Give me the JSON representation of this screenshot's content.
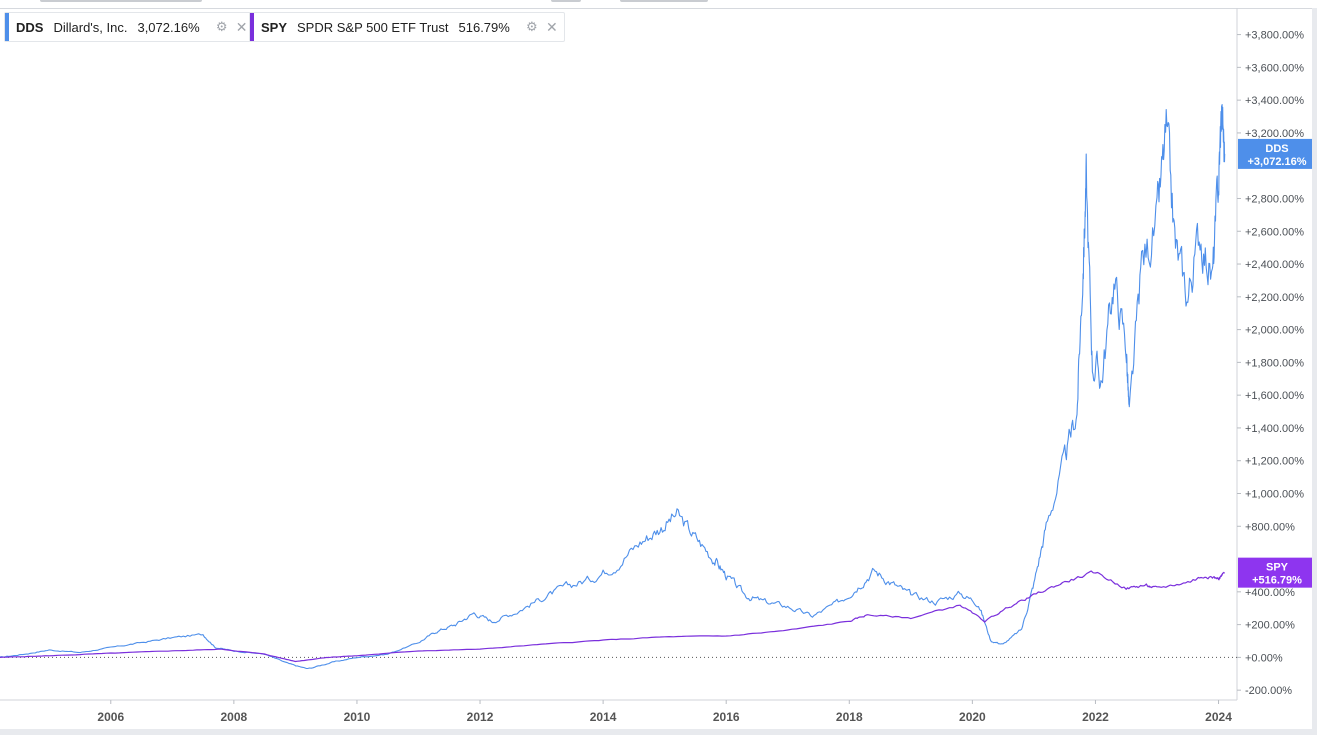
{
  "legend": [
    {
      "symbol": "DDS",
      "name": "Dillard's, Inc.",
      "value": "3,072.16%",
      "color": "#4e8fea"
    },
    {
      "symbol": "SPY",
      "name": "SPDR S&P 500 ETF Trust",
      "value": "516.79%",
      "color": "#7a2fdc"
    }
  ],
  "price_tags": [
    {
      "series": "DDS",
      "line1": "DDS",
      "line2": "+3,072.16%",
      "color": "#4e8fea"
    },
    {
      "series": "SPY",
      "line1": "SPY",
      "line2": "+516.79%",
      "color": "#8e35ef"
    }
  ],
  "icons": {
    "settings": "gear-icon",
    "close": "close-icon"
  },
  "chart_data": {
    "type": "line",
    "x_unit": "year",
    "xlim": [
      2004.2,
      2024.3
    ],
    "ylim": [
      -260,
      3950
    ],
    "y_ticks": [
      {
        "value": 3800,
        "label": "+3,800.00%"
      },
      {
        "value": 3600,
        "label": "+3,600.00%"
      },
      {
        "value": 3400,
        "label": "+3,400.00%"
      },
      {
        "value": 3200,
        "label": "+3,200.00%"
      },
      {
        "value": 2800,
        "label": "+2,800.00%"
      },
      {
        "value": 2600,
        "label": "+2,600.00%"
      },
      {
        "value": 2400,
        "label": "+2,400.00%"
      },
      {
        "value": 2200,
        "label": "+2,200.00%"
      },
      {
        "value": 2000,
        "label": "+2,000.00%"
      },
      {
        "value": 1800,
        "label": "+1,800.00%"
      },
      {
        "value": 1600,
        "label": "+1,600.00%"
      },
      {
        "value": 1400,
        "label": "+1,400.00%"
      },
      {
        "value": 1200,
        "label": "+1,200.00%"
      },
      {
        "value": 1000,
        "label": "+1,000.00%"
      },
      {
        "value": 800,
        "label": "+800.00%"
      },
      {
        "value": 400,
        "label": "+400.00%"
      },
      {
        "value": 200,
        "label": "+200.00%"
      },
      {
        "value": 0,
        "label": "+0.00%"
      },
      {
        "value": -200,
        "label": "-200.00%"
      }
    ],
    "x_ticks": [
      {
        "value": 2006,
        "label": "2006"
      },
      {
        "value": 2008,
        "label": "2008"
      },
      {
        "value": 2010,
        "label": "2010"
      },
      {
        "value": 2012,
        "label": "2012"
      },
      {
        "value": 2014,
        "label": "2014"
      },
      {
        "value": 2016,
        "label": "2016"
      },
      {
        "value": 2018,
        "label": "2018"
      },
      {
        "value": 2020,
        "label": "2020"
      },
      {
        "value": 2022,
        "label": "2022"
      },
      {
        "value": 2024,
        "label": "2024"
      }
    ],
    "zero_line": true,
    "grid": false,
    "series": [
      {
        "name": "DDS",
        "color": "#4e8fea",
        "points": [
          [
            2004.2,
            0
          ],
          [
            2004.6,
            20
          ],
          [
            2005.0,
            45
          ],
          [
            2005.5,
            30
          ],
          [
            2006.0,
            60
          ],
          [
            2006.5,
            90
          ],
          [
            2007.0,
            120
          ],
          [
            2007.5,
            140
          ],
          [
            2007.7,
            60
          ],
          [
            2008.0,
            40
          ],
          [
            2008.5,
            20
          ],
          [
            2008.9,
            -40
          ],
          [
            2009.2,
            -70
          ],
          [
            2009.6,
            -30
          ],
          [
            2010.0,
            0
          ],
          [
            2010.5,
            20
          ],
          [
            2011.0,
            90
          ],
          [
            2011.3,
            160
          ],
          [
            2011.6,
            200
          ],
          [
            2011.9,
            270
          ],
          [
            2012.2,
            220
          ],
          [
            2012.6,
            280
          ],
          [
            2013.0,
            360
          ],
          [
            2013.4,
            430
          ],
          [
            2013.8,
            480
          ],
          [
            2014.2,
            560
          ],
          [
            2014.6,
            700
          ],
          [
            2014.9,
            780
          ],
          [
            2015.2,
            870
          ],
          [
            2015.5,
            730
          ],
          [
            2015.8,
            600
          ],
          [
            2016.0,
            500
          ],
          [
            2016.3,
            380
          ],
          [
            2016.6,
            340
          ],
          [
            2017.0,
            310
          ],
          [
            2017.4,
            250
          ],
          [
            2017.8,
            330
          ],
          [
            2018.1,
            420
          ],
          [
            2018.4,
            530
          ],
          [
            2018.7,
            450
          ],
          [
            2019.0,
            380
          ],
          [
            2019.4,
            340
          ],
          [
            2019.8,
            390
          ],
          [
            2020.1,
            330
          ],
          [
            2020.3,
            100
          ],
          [
            2020.5,
            80
          ],
          [
            2020.8,
            170
          ],
          [
            2021.0,
            450
          ],
          [
            2021.2,
            800
          ],
          [
            2021.5,
            1200
          ],
          [
            2021.7,
            1500
          ],
          [
            2021.8,
            2400
          ],
          [
            2021.85,
            2900
          ],
          [
            2021.95,
            1800
          ],
          [
            2022.1,
            1700
          ],
          [
            2022.3,
            2300
          ],
          [
            2022.5,
            1900
          ],
          [
            2022.55,
            1450
          ],
          [
            2022.75,
            2400
          ],
          [
            2023.0,
            2650
          ],
          [
            2023.15,
            3200
          ],
          [
            2023.3,
            2500
          ],
          [
            2023.5,
            2200
          ],
          [
            2023.7,
            2600
          ],
          [
            2023.9,
            2300
          ],
          [
            2024.0,
            2900
          ],
          [
            2024.05,
            3350
          ],
          [
            2024.1,
            3072
          ]
        ]
      },
      {
        "name": "SPY",
        "color": "#7a2fdc",
        "points": [
          [
            2004.2,
            0
          ],
          [
            2005.0,
            10
          ],
          [
            2006.0,
            25
          ],
          [
            2007.0,
            40
          ],
          [
            2007.8,
            50
          ],
          [
            2008.5,
            20
          ],
          [
            2009.0,
            -25
          ],
          [
            2009.5,
            0
          ],
          [
            2010.0,
            10
          ],
          [
            2011.0,
            40
          ],
          [
            2012.0,
            50
          ],
          [
            2013.0,
            80
          ],
          [
            2014.0,
            105
          ],
          [
            2015.0,
            125
          ],
          [
            2016.0,
            130
          ],
          [
            2017.0,
            165
          ],
          [
            2018.0,
            220
          ],
          [
            2018.3,
            260
          ],
          [
            2019.0,
            240
          ],
          [
            2019.8,
            320
          ],
          [
            2020.2,
            220
          ],
          [
            2020.6,
            310
          ],
          [
            2021.0,
            380
          ],
          [
            2021.5,
            460
          ],
          [
            2022.0,
            520
          ],
          [
            2022.5,
            420
          ],
          [
            2022.8,
            440
          ],
          [
            2023.0,
            420
          ],
          [
            2023.5,
            460
          ],
          [
            2023.8,
            500
          ],
          [
            2024.0,
            480
          ],
          [
            2024.1,
            517
          ]
        ]
      }
    ]
  }
}
